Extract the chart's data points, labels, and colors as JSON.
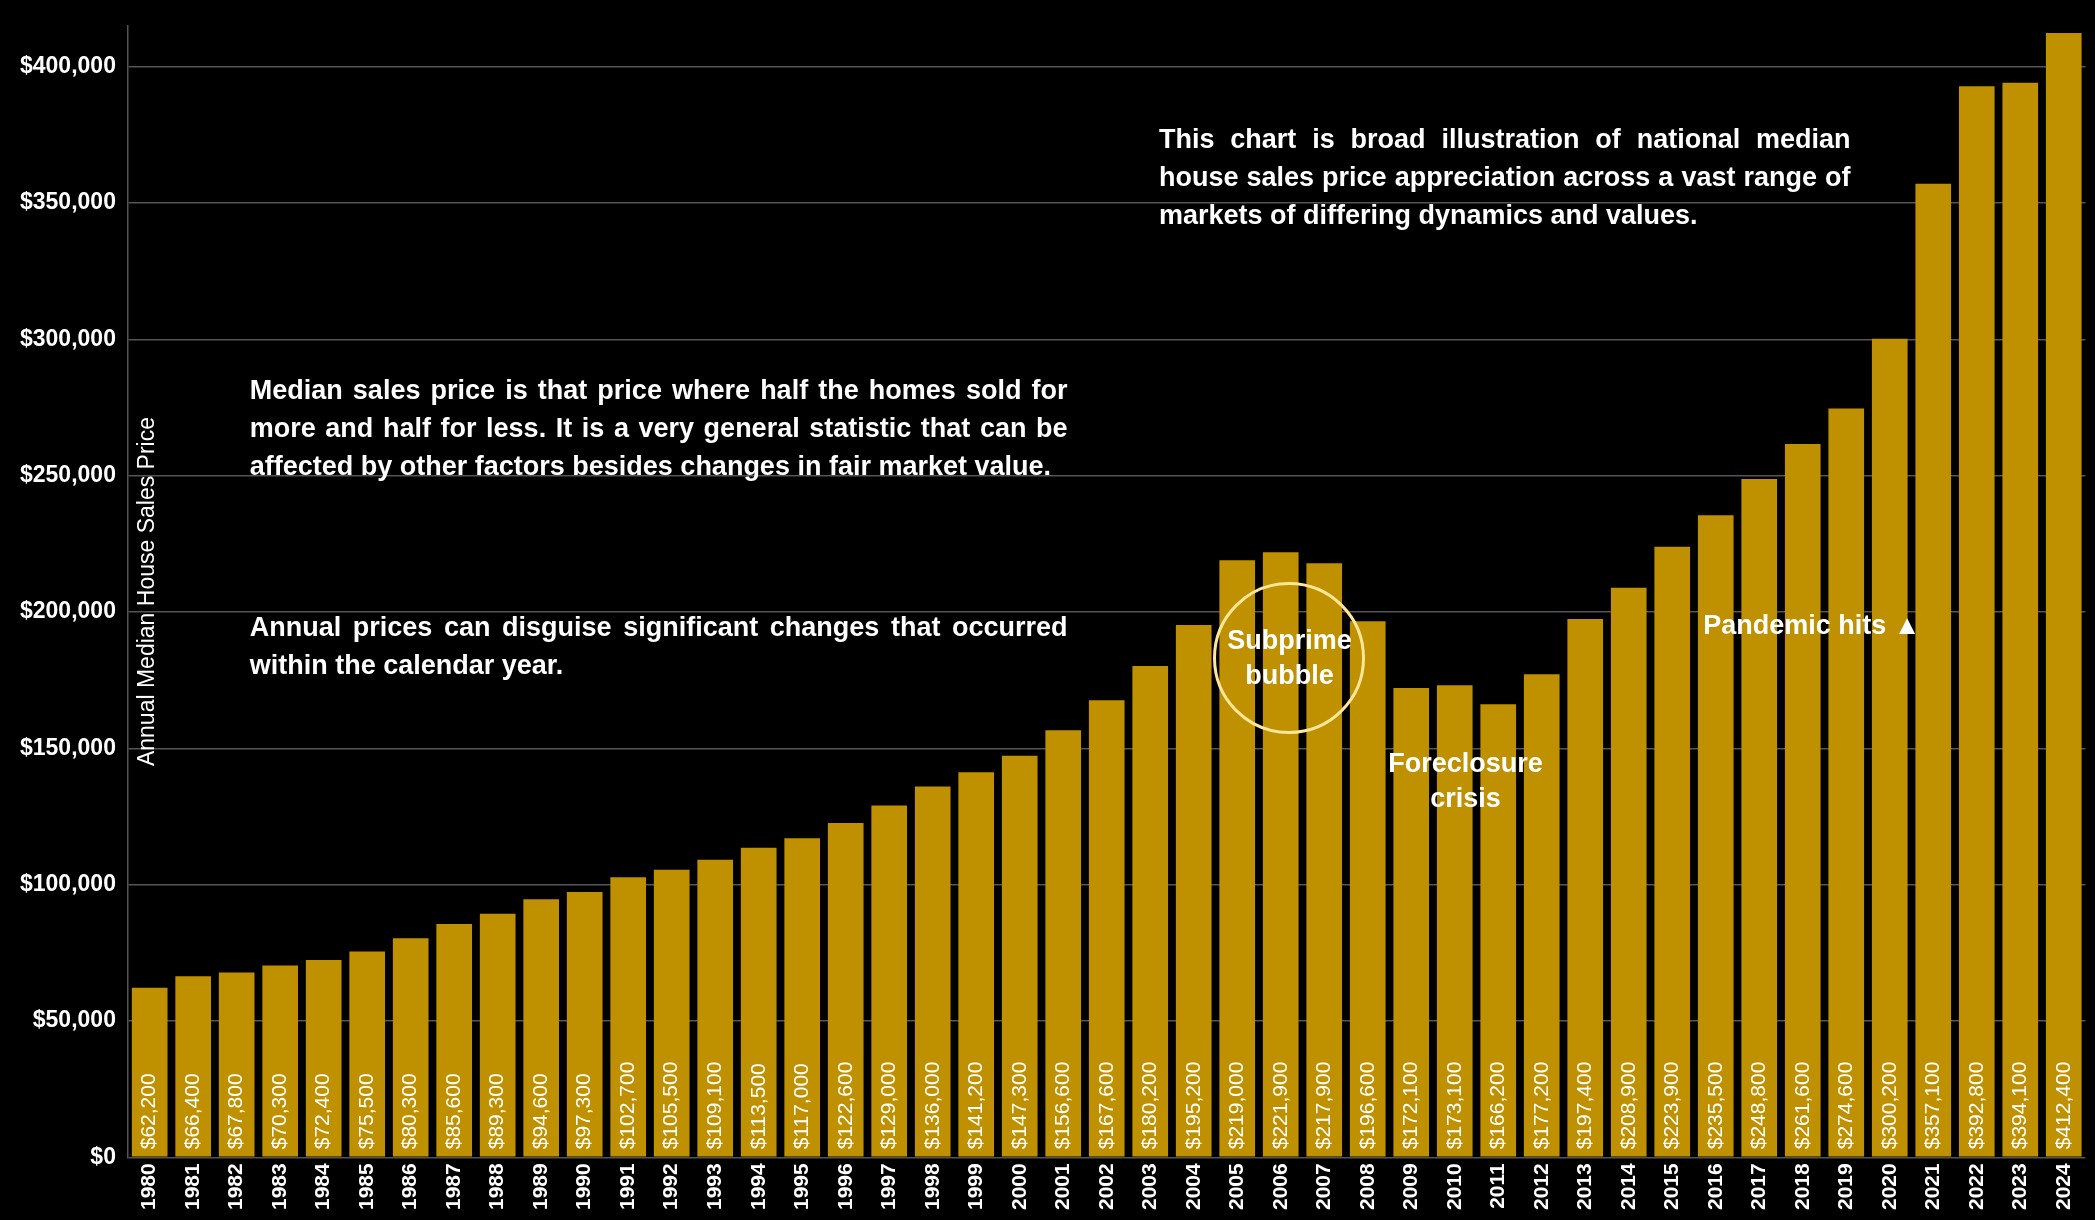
{
  "chart_data": {
    "type": "bar",
    "ylabel": "Annual Median House Sales Price",
    "categories": [
      "1980",
      "1981",
      "1982",
      "1983",
      "1984",
      "1985",
      "1986",
      "1987",
      "1988",
      "1989",
      "1990",
      "1991",
      "1992",
      "1993",
      "1994",
      "1995",
      "1996",
      "1997",
      "1998",
      "1999",
      "2000",
      "2001",
      "2002",
      "2003",
      "2004",
      "2005",
      "2006",
      "2007",
      "2008",
      "2009",
      "2010",
      "2011",
      "2012",
      "2013",
      "2014",
      "2015",
      "2016",
      "2017",
      "2018",
      "2019",
      "2020",
      "2021",
      "2022",
      "2023",
      "2024"
    ],
    "values": [
      62200,
      66400,
      67800,
      70300,
      72400,
      75500,
      80300,
      85600,
      89300,
      94600,
      97300,
      102700,
      105500,
      109100,
      113500,
      117000,
      122600,
      129000,
      136000,
      141200,
      147300,
      156600,
      167600,
      180200,
      195200,
      219000,
      221900,
      217900,
      196600,
      172100,
      173100,
      166200,
      177200,
      197400,
      208900,
      223900,
      235500,
      248800,
      261600,
      274600,
      300200,
      357100,
      392800,
      394100,
      412400
    ],
    "value_labels": [
      "$62,200",
      "$66,400",
      "$67,800",
      "$70,300",
      "$72,400",
      "$75,500",
      "$80,300",
      "$85,600",
      "$89,300",
      "$94,600",
      "$97,300",
      "$102,700",
      "$105,500",
      "$109,100",
      "$113,500",
      "$117,000",
      "$122,600",
      "$129,000",
      "$136,000",
      "$141,200",
      "$147,300",
      "$156,600",
      "$167,600",
      "$180,200",
      "$195,200",
      "$219,000",
      "$221,900",
      "$217,900",
      "$196,600",
      "$172,100",
      "$173,100",
      "$166,200",
      "$177,200",
      "$197,400",
      "$208,900",
      "$223,900",
      "$235,500",
      "$248,800",
      "$261,600",
      "$274,600",
      "$300,200",
      "$357,100",
      "$392,800",
      "$394,100",
      "$412,400"
    ],
    "color": "#bf9000",
    "ylim": [
      0,
      415000
    ],
    "yticks": [
      {
        "value": 0,
        "label": "$0"
      },
      {
        "value": 50000,
        "label": "$50,000"
      },
      {
        "value": 100000,
        "label": "$100,000"
      },
      {
        "value": 150000,
        "label": "$150,000"
      },
      {
        "value": 200000,
        "label": "$200,000"
      },
      {
        "value": 250000,
        "label": "$250,000"
      },
      {
        "value": 300000,
        "label": "$300,000"
      },
      {
        "value": 350000,
        "label": "$350,000"
      },
      {
        "value": 400000,
        "label": "$400,000"
      }
    ],
    "grid": "y",
    "legend": false,
    "annotations": [
      "This chart is broad illustration of national median house sales price appreciation across a vast range of markets of differing dynamics and values.",
      "Median sales price is that price where half the homes sold for more and half for less. It is a very general statistic that can be affected by other factors besides changes in fair market value.",
      "Annual prices can disguise significant changes that occurred within the calendar year.",
      "Subprime bubble",
      "Foreclosure crisis",
      "Pandemic hits ▲"
    ]
  }
}
